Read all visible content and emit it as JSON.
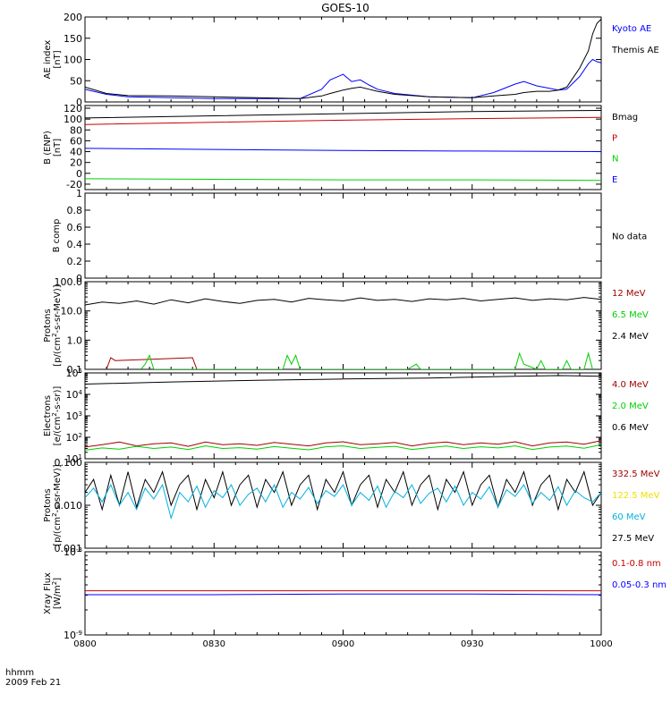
{
  "title": "GOES-10",
  "footer": {
    "format_label": "hhmm",
    "date_label": "2009 Feb 21"
  },
  "x_axis": {
    "range": [
      "0800",
      "1000"
    ],
    "ticks": [
      "0800",
      "0830",
      "0900",
      "0930",
      "1000"
    ]
  },
  "colors": {
    "black": "#000000",
    "blue": "#0000ff",
    "red": "#c80000",
    "green": "#00d000",
    "cyan": "#00b0e0",
    "yellow": "#f0e000",
    "darkred": "#a00000"
  },
  "chart_data": [
    {
      "type": "line",
      "ylabel": "AE index\n[nT]",
      "scale": "linear",
      "ylim": [
        0,
        200
      ],
      "ticks": [
        0,
        50,
        100,
        150,
        200
      ],
      "legend": [
        {
          "label": "Kyoto AE",
          "color": "#0000ff"
        },
        {
          "label": "Themis AE",
          "color": "#000000"
        }
      ],
      "series": [
        {
          "name": "Kyoto AE",
          "color": "#0000ff",
          "x": [
            0,
            5,
            10,
            20,
            30,
            40,
            50,
            55,
            57,
            60,
            62,
            64,
            66,
            68,
            72,
            80,
            90,
            95,
            100,
            102,
            105,
            108,
            110,
            112,
            115,
            117,
            118,
            119,
            120
          ],
          "y": [
            30,
            18,
            12,
            10,
            8,
            8,
            8,
            30,
            52,
            65,
            48,
            52,
            40,
            30,
            20,
            12,
            10,
            22,
            42,
            48,
            38,
            32,
            28,
            30,
            60,
            90,
            100,
            95,
            92
          ]
        },
        {
          "name": "Themis AE",
          "color": "#000000",
          "x": [
            0,
            5,
            10,
            20,
            30,
            40,
            50,
            55,
            57,
            60,
            62,
            64,
            66,
            68,
            72,
            80,
            90,
            95,
            100,
            102,
            105,
            108,
            110,
            112,
            115,
            117,
            118,
            119,
            120
          ],
          "y": [
            35,
            20,
            15,
            14,
            12,
            10,
            8,
            14,
            20,
            28,
            32,
            35,
            30,
            25,
            18,
            12,
            10,
            14,
            18,
            22,
            25,
            25,
            28,
            35,
            80,
            120,
            160,
            185,
            195
          ]
        }
      ]
    },
    {
      "type": "line",
      "ylabel": "B (ENP)\n[nT]",
      "scale": "linear",
      "ylim": [
        -30,
        125
      ],
      "ticks": [
        -20,
        0,
        20,
        40,
        60,
        80,
        100,
        120
      ],
      "legend": [
        {
          "label": "Bmag",
          "color": "#000000"
        },
        {
          "label": "P",
          "color": "#c80000"
        },
        {
          "label": "N",
          "color": "#00d000"
        },
        {
          "label": "E",
          "color": "#0000ff"
        }
      ],
      "series": [
        {
          "name": "Bmag",
          "color": "#000000",
          "x": [
            0,
            30,
            60,
            90,
            120
          ],
          "y": [
            102,
            106,
            110,
            114,
            116
          ]
        },
        {
          "name": "P",
          "color": "#c80000",
          "x": [
            0,
            30,
            60,
            90,
            120
          ],
          "y": [
            90,
            94,
            98,
            101,
            103
          ]
        },
        {
          "name": "N",
          "color": "#00d000",
          "x": [
            0,
            30,
            60,
            90,
            120
          ],
          "y": [
            -10,
            -11,
            -12,
            -12,
            -13
          ]
        },
        {
          "name": "E",
          "color": "#0000ff",
          "x": [
            0,
            30,
            60,
            90,
            120
          ],
          "y": [
            46,
            44,
            42,
            41,
            40
          ]
        }
      ]
    },
    {
      "type": "line",
      "ylabel": "B comp",
      "scale": "linear",
      "ylim": [
        0,
        1
      ],
      "ticks": [
        0.0,
        0.2,
        0.4,
        0.6,
        0.8,
        1.0
      ],
      "legend": [
        {
          "label": "No data",
          "color": "#000000"
        }
      ],
      "series": []
    },
    {
      "type": "line",
      "ylabel": "Protons\n[p/(cm^2-s-sr-MeV)]",
      "scale": "log",
      "ylim": [
        0.1,
        100
      ],
      "ticks": [
        0.1,
        1.0,
        10.0,
        100.0
      ],
      "tick_labels": [
        "0.1",
        "1.0",
        "10.0",
        "100.0"
      ],
      "legend": [
        {
          "label": "12 MeV",
          "color": "#a00000"
        },
        {
          "label": "6.5 MeV",
          "color": "#00d000"
        },
        {
          "label": "2.4 MeV",
          "color": "#000000"
        }
      ],
      "series": [
        {
          "name": "2.4 MeV",
          "color": "#000000",
          "x": [
            0,
            4,
            8,
            12,
            16,
            20,
            24,
            28,
            32,
            36,
            40,
            44,
            48,
            52,
            56,
            60,
            64,
            68,
            72,
            76,
            80,
            84,
            88,
            92,
            96,
            100,
            104,
            108,
            112,
            116,
            120
          ],
          "y": [
            16,
            20,
            18,
            22,
            17,
            24,
            19,
            26,
            21,
            18,
            23,
            25,
            20,
            27,
            24,
            22,
            28,
            23,
            25,
            21,
            26,
            24,
            27,
            22,
            25,
            28,
            23,
            26,
            24,
            29,
            25
          ]
        },
        {
          "name": "12 MeV",
          "color": "#a00000",
          "x": [
            5,
            6,
            7,
            25,
            26
          ],
          "y": [
            0.1,
            0.25,
            0.2,
            0.25,
            0.1
          ]
        },
        {
          "name": "6.5 MeV",
          "color": "#00d000",
          "x": [
            13,
            14,
            15,
            16,
            30,
            34,
            42,
            46,
            47,
            48,
            49,
            50,
            75,
            77,
            78,
            84,
            88,
            100,
            101,
            102,
            105,
            106,
            107,
            111,
            112,
            113,
            116,
            117,
            118
          ],
          "y": [
            0.1,
            0.15,
            0.3,
            0.1,
            0.1,
            0.1,
            0.1,
            0.1,
            0.3,
            0.15,
            0.3,
            0.1,
            0.1,
            0.15,
            0.1,
            0.1,
            0.1,
            0.1,
            0.35,
            0.15,
            0.1,
            0.2,
            0.1,
            0.1,
            0.2,
            0.1,
            0.1,
            0.35,
            0.1
          ]
        }
      ]
    },
    {
      "type": "line",
      "ylabel": "Electrons\n[e/(cm^2-s-sr)]",
      "scale": "log",
      "ylim": [
        10,
        100000
      ],
      "ticks": [
        10,
        100,
        1000,
        10000,
        100000
      ],
      "tick_labels": [
        "10^1",
        "10^2",
        "10^3",
        "10^4",
        "10^5"
      ],
      "legend": [
        {
          "label": "4.0 MeV",
          "color": "#a00000"
        },
        {
          "label": "2.0 MeV",
          "color": "#00d000"
        },
        {
          "label": "0.6 MeV",
          "color": "#000000"
        }
      ],
      "series": [
        {
          "name": "0.6 MeV",
          "color": "#000000",
          "x": [
            0,
            20,
            40,
            60,
            80,
            100,
            110,
            120
          ],
          "y": [
            30000,
            38000,
            45000,
            52000,
            58000,
            70000,
            75000,
            70000
          ]
        },
        {
          "name": "4.0 MeV",
          "color": "#a00000",
          "x": [
            0,
            4,
            8,
            12,
            16,
            20,
            24,
            28,
            32,
            36,
            40,
            44,
            48,
            52,
            56,
            60,
            64,
            68,
            72,
            76,
            80,
            84,
            88,
            92,
            96,
            100,
            104,
            108,
            112,
            116,
            120
          ],
          "y": [
            35,
            45,
            60,
            40,
            50,
            55,
            38,
            60,
            45,
            50,
            42,
            58,
            48,
            40,
            55,
            62,
            45,
            50,
            58,
            40,
            52,
            60,
            45,
            55,
            48,
            62,
            40,
            55,
            60,
            48,
            70
          ]
        },
        {
          "name": "2.0 MeV",
          "color": "#00d000",
          "x": [
            0,
            4,
            8,
            12,
            16,
            20,
            24,
            28,
            32,
            36,
            40,
            44,
            48,
            52,
            56,
            60,
            64,
            68,
            72,
            76,
            80,
            84,
            88,
            92,
            96,
            100,
            104,
            108,
            112,
            116,
            120
          ],
          "y": [
            25,
            32,
            28,
            38,
            30,
            35,
            27,
            40,
            30,
            33,
            28,
            37,
            31,
            26,
            36,
            40,
            30,
            34,
            38,
            27,
            33,
            39,
            30,
            36,
            32,
            40,
            27,
            35,
            39,
            31,
            45
          ]
        }
      ]
    },
    {
      "type": "line",
      "ylabel": "Protons\n[p/(cm^2-s-sr-MeV)]",
      "scale": "log",
      "ylim": [
        0.001,
        0.1
      ],
      "ticks": [
        0.001,
        0.01,
        0.1
      ],
      "tick_labels": [
        "0.001",
        "0.010",
        "0.100"
      ],
      "legend": [
        {
          "label": "332.5 MeV",
          "color": "#a00000"
        },
        {
          "label": "122.5 MeV",
          "color": "#f0e000"
        },
        {
          "label": "60 MeV",
          "color": "#00b0e0"
        },
        {
          "label": "27.5 MeV",
          "color": "#000000"
        }
      ],
      "series": [
        {
          "name": "27.5 MeV",
          "color": "#000000",
          "x": [
            0,
            2,
            4,
            6,
            8,
            10,
            12,
            14,
            16,
            18,
            20,
            22,
            24,
            26,
            28,
            30,
            32,
            34,
            36,
            38,
            40,
            42,
            44,
            46,
            48,
            50,
            52,
            54,
            56,
            58,
            60,
            62,
            64,
            66,
            68,
            70,
            72,
            74,
            76,
            78,
            80,
            82,
            84,
            86,
            88,
            90,
            92,
            94,
            96,
            98,
            100,
            102,
            104,
            106,
            108,
            110,
            112,
            114,
            116,
            118,
            120
          ],
          "y": [
            0.02,
            0.04,
            0.008,
            0.05,
            0.01,
            0.06,
            0.009,
            0.04,
            0.02,
            0.06,
            0.01,
            0.03,
            0.05,
            0.008,
            0.04,
            0.015,
            0.06,
            0.01,
            0.03,
            0.05,
            0.009,
            0.04,
            0.02,
            0.06,
            0.01,
            0.03,
            0.05,
            0.008,
            0.04,
            0.02,
            0.06,
            0.01,
            0.03,
            0.05,
            0.009,
            0.04,
            0.02,
            0.06,
            0.01,
            0.03,
            0.05,
            0.008,
            0.04,
            0.02,
            0.06,
            0.01,
            0.03,
            0.05,
            0.009,
            0.04,
            0.02,
            0.06,
            0.01,
            0.03,
            0.05,
            0.008,
            0.04,
            0.02,
            0.06,
            0.01,
            0.02
          ]
        },
        {
          "name": "60 MeV",
          "color": "#00b0e0",
          "x": [
            0,
            2,
            4,
            6,
            8,
            10,
            12,
            14,
            16,
            18,
            20,
            22,
            24,
            26,
            28,
            30,
            32,
            34,
            36,
            38,
            40,
            42,
            44,
            46,
            48,
            50,
            52,
            54,
            56,
            58,
            60,
            62,
            64,
            66,
            68,
            70,
            72,
            74,
            76,
            78,
            80,
            82,
            84,
            86,
            88,
            90,
            92,
            94,
            96,
            98,
            100,
            102,
            104,
            106,
            108,
            110,
            112,
            114,
            116,
            118,
            120
          ],
          "y": [
            0.015,
            0.025,
            0.012,
            0.03,
            0.01,
            0.02,
            0.008,
            0.025,
            0.014,
            0.03,
            0.005,
            0.02,
            0.012,
            0.028,
            0.009,
            0.022,
            0.015,
            0.03,
            0.01,
            0.018,
            0.025,
            0.012,
            0.03,
            0.009,
            0.02,
            0.014,
            0.026,
            0.011,
            0.022,
            0.016,
            0.03,
            0.01,
            0.02,
            0.013,
            0.028,
            0.009,
            0.021,
            0.015,
            0.03,
            0.011,
            0.019,
            0.025,
            0.012,
            0.028,
            0.01,
            0.02,
            0.014,
            0.027,
            0.009,
            0.023,
            0.016,
            0.03,
            0.011,
            0.02,
            0.013,
            0.027,
            0.01,
            0.022,
            0.015,
            0.012,
            0.02
          ]
        }
      ]
    },
    {
      "type": "line",
      "ylabel": "Xray Flux\n[W/m^2]",
      "scale": "log",
      "ylim": [
        1e-09,
        1e-08
      ],
      "ticks": [
        1e-09,
        1e-08
      ],
      "tick_labels": [
        "10^-9",
        "10^-8"
      ],
      "legend": [
        {
          "label": "0.1-0.8 nm",
          "color": "#c80000"
        },
        {
          "label": "0.05-0.3 nm",
          "color": "#0000ff"
        }
      ],
      "series": [
        {
          "name": "0.1-0.8 nm",
          "color": "#c80000",
          "x": [
            0,
            30,
            60,
            90,
            120
          ],
          "y": [
            3.4e-09,
            3.4e-09,
            3.4e-09,
            3.4e-09,
            3.4e-09
          ]
        },
        {
          "name": "0.05-0.3 nm",
          "color": "#0000ff",
          "x": [
            0,
            30,
            60,
            90,
            120
          ],
          "y": [
            3.05e-09,
            3.05e-09,
            3.1e-09,
            3.1e-09,
            3.05e-09
          ]
        }
      ]
    }
  ]
}
